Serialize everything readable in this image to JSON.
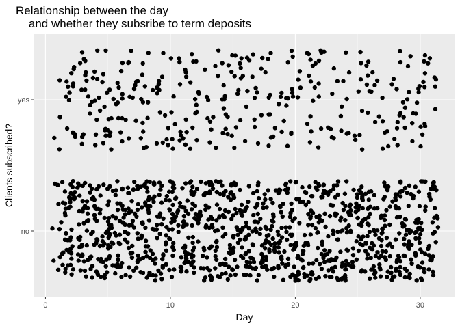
{
  "chart_data": {
    "type": "scatter",
    "title_lines": [
      "Relationship between the day",
      "    and whether they subsribe to term deposits"
    ],
    "xlabel": "Day",
    "ylabel": "Clients subscribed?",
    "xlim": [
      -0.9,
      32.8
    ],
    "x_ticks": [
      0,
      10,
      20,
      30
    ],
    "categories": [
      "no",
      "yes"
    ],
    "jitter": {
      "x": 0.45,
      "y": 0.38
    },
    "series": [
      {
        "category": "yes",
        "points_per_day": [
          0,
          4,
          14,
          13,
          13,
          18,
          13,
          11,
          13,
          11,
          10,
          13,
          13,
          8,
          13,
          12,
          11,
          11,
          11,
          10,
          11,
          11,
          10,
          7,
          9,
          9,
          10,
          8,
          11,
          11,
          15,
          6
        ]
      },
      {
        "category": "no",
        "points_per_day": [
          0,
          14,
          38,
          38,
          38,
          38,
          38,
          38,
          38,
          38,
          38,
          38,
          38,
          38,
          38,
          38,
          38,
          38,
          38,
          38,
          38,
          38,
          38,
          38,
          38,
          38,
          38,
          38,
          38,
          38,
          38,
          30
        ]
      }
    ],
    "point_color": "#000000",
    "panel_background": "#ebebeb",
    "grid": true,
    "legend": "none"
  }
}
